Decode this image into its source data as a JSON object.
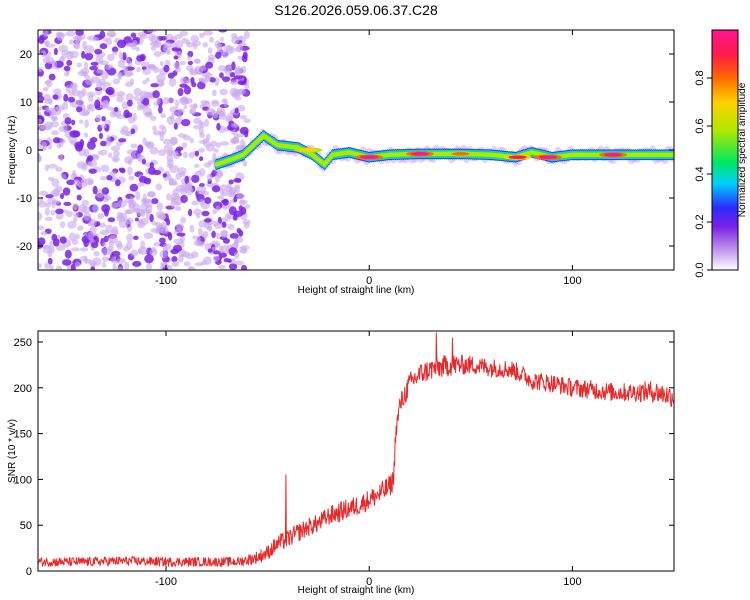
{
  "figure_title": "S126.2026.059.06.37.C28",
  "colors": {
    "snr_line": "#e8292b",
    "frame": "#000000",
    "colormap": [
      "#c9a6ef",
      "#7a22e6",
      "#2a2aff",
      "#00cfff",
      "#00e860",
      "#b0e800",
      "#ffd000",
      "#ff6a00",
      "#ff1a4a",
      "#ff1493"
    ]
  },
  "chart_data": [
    {
      "type": "heatmap",
      "xlabel": "Height of straight line (km)",
      "ylabel": "Frequency (Hz)",
      "xlim": [
        -163,
        150
      ],
      "ylim": [
        -25,
        25
      ],
      "x_ticks": [
        -100,
        0,
        100
      ],
      "x_tick_labels": [
        "-100",
        "0",
        "100"
      ],
      "y_ticks": [
        -20,
        -10,
        0,
        10,
        20
      ],
      "y_tick_labels": [
        "-20",
        "-10",
        "0",
        "10",
        "20"
      ],
      "colorbar": {
        "label": "Normalized spectral amplitude",
        "range": [
          0,
          1
        ],
        "ticks": [
          0,
          0.2,
          0.4,
          0.6,
          0.8
        ],
        "tick_labels": [
          "0.0",
          "0.2",
          "0.4",
          "0.6",
          "0.8"
        ]
      },
      "noise_region": {
        "x_range": [
          -163,
          -60
        ],
        "y_range": [
          -25,
          25
        ],
        "amplitude_range": [
          0.05,
          0.3
        ]
      },
      "ridge": [
        {
          "x": -75,
          "y": -3
        },
        {
          "x": -68,
          "y": -2
        },
        {
          "x": -62,
          "y": -1
        },
        {
          "x": -57,
          "y": 1
        },
        {
          "x": -52,
          "y": 3
        },
        {
          "x": -45,
          "y": 1
        },
        {
          "x": -35,
          "y": 0.5
        },
        {
          "x": -28,
          "y": -1
        },
        {
          "x": -22,
          "y": -3
        },
        {
          "x": -18,
          "y": -1
        },
        {
          "x": -10,
          "y": -0.5
        },
        {
          "x": 0,
          "y": -1.5
        },
        {
          "x": 10,
          "y": -1
        },
        {
          "x": 25,
          "y": -0.8
        },
        {
          "x": 45,
          "y": -0.8
        },
        {
          "x": 60,
          "y": -1
        },
        {
          "x": 72,
          "y": -1.5
        },
        {
          "x": 80,
          "y": -0.5
        },
        {
          "x": 90,
          "y": -1.5
        },
        {
          "x": 100,
          "y": -1
        },
        {
          "x": 125,
          "y": -1
        },
        {
          "x": 150,
          "y": -1
        }
      ],
      "ridge_peaks": [
        {
          "x": -30,
          "y": 0,
          "amplitude": 0.7
        },
        {
          "x": 0,
          "y": -1.5,
          "amplitude": 0.95
        },
        {
          "x": 25,
          "y": -0.8,
          "amplitude": 0.98
        },
        {
          "x": 45,
          "y": -0.8,
          "amplitude": 0.75
        },
        {
          "x": 73,
          "y": -1.5,
          "amplitude": 0.85
        },
        {
          "x": 88,
          "y": -1.5,
          "amplitude": 0.95
        },
        {
          "x": 120,
          "y": -1,
          "amplitude": 0.98
        }
      ]
    },
    {
      "type": "line",
      "xlabel": "Height of straight line (km)",
      "ylabel": "SNR (10 * v/v)",
      "xlim": [
        -163,
        150
      ],
      "ylim": [
        0,
        262
      ],
      "x_ticks": [
        -100,
        0,
        100
      ],
      "x_tick_labels": [
        "-100",
        "0",
        "100"
      ],
      "y_ticks": [
        0,
        50,
        100,
        150,
        200,
        250
      ],
      "y_tick_labels": [
        "0",
        "50",
        "100",
        "150",
        "200",
        "250"
      ],
      "series": [
        {
          "name": "SNR",
          "x": [
            -163,
            -140,
            -120,
            -100,
            -80,
            -65,
            -60,
            -55,
            -50,
            -45,
            -40,
            -35,
            -30,
            -25,
            -20,
            -15,
            -10,
            -5,
            0,
            5,
            10,
            12,
            13,
            15,
            20,
            25,
            30,
            40,
            50,
            60,
            70,
            75,
            80,
            90,
            100,
            110,
            120,
            130,
            140,
            150
          ],
          "y": [
            10,
            10,
            11,
            10,
            10,
            10,
            12,
            15,
            20,
            30,
            35,
            42,
            48,
            52,
            60,
            64,
            68,
            72,
            78,
            84,
            92,
            100,
            150,
            180,
            205,
            215,
            220,
            225,
            225,
            222,
            220,
            215,
            208,
            205,
            200,
            198,
            195,
            195,
            196,
            190
          ],
          "noise": [
            5,
            5,
            5,
            5,
            5,
            5,
            6,
            7,
            8,
            9,
            10,
            10,
            10,
            10,
            10,
            11,
            11,
            11,
            11,
            12,
            12,
            12,
            10,
            12,
            12,
            12,
            12,
            12,
            10,
            10,
            10,
            10,
            10,
            10,
            10,
            10,
            10,
            10,
            12,
            12
          ],
          "spikes": [
            {
              "x": -41,
              "y": 105
            },
            {
              "x": 33,
              "y": 260
            },
            {
              "x": 41,
              "y": 254
            }
          ]
        }
      ]
    }
  ]
}
